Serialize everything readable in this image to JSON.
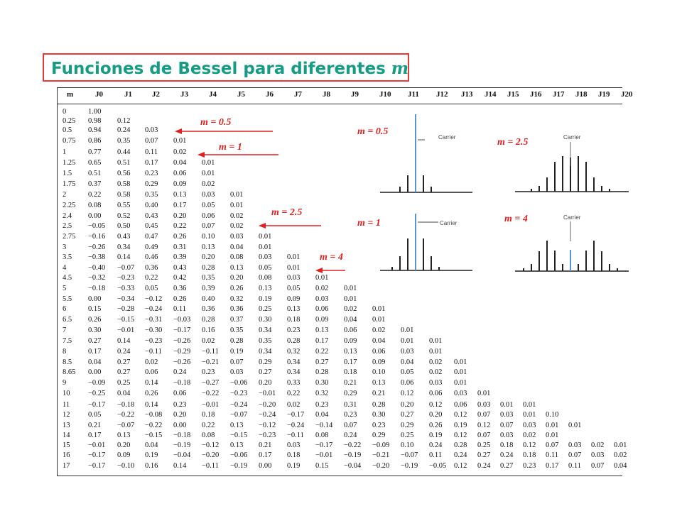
{
  "title": {
    "text": "Funciones de Bessel para diferentes ",
    "var": "m"
  },
  "table": {
    "headers": [
      "m",
      "J0",
      "J1",
      "J2",
      "J3",
      "J4",
      "J5",
      "J6",
      "J7",
      "J8",
      "J9",
      "J10",
      "J11",
      "J12",
      "J13",
      "J14",
      "J15",
      "J16",
      "J17",
      "J18",
      "J19",
      "J20"
    ],
    "rows": [
      [
        "0",
        "1.00"
      ],
      [
        "0.25",
        "0.98",
        "0.12"
      ],
      [
        "0.5",
        "0.94",
        "0.24",
        "0.03"
      ],
      [
        "0.75",
        "0.86",
        "0.35",
        "0.07",
        "0.01"
      ],
      [
        "1",
        "0.77",
        "0.44",
        "0.11",
        "0.02"
      ],
      [
        "1.25",
        "0.65",
        "0.51",
        "0.17",
        "0.04",
        "0.01"
      ],
      [
        "1.5",
        "0.51",
        "0.56",
        "0.23",
        "0.06",
        "0.01"
      ],
      [
        "1.75",
        "0.37",
        "0.58",
        "0.29",
        "0.09",
        "0.02"
      ],
      [
        "2",
        "0.22",
        "0.58",
        "0.35",
        "0.13",
        "0.03",
        "0.01"
      ],
      [
        "2.25",
        "0.08",
        "0.55",
        "0.40",
        "0.17",
        "0.05",
        "0.01"
      ],
      [
        "2.4",
        "0.00",
        "0.52",
        "0.43",
        "0.20",
        "0.06",
        "0.02"
      ],
      [
        "2.5",
        "−0.05",
        "0.50",
        "0.45",
        "0.22",
        "0.07",
        "0.02"
      ],
      [
        "2.75",
        "−0.16",
        "0.43",
        "0.47",
        "0.26",
        "0.10",
        "0.03",
        "0.01"
      ],
      [
        "3",
        "−0.26",
        "0.34",
        "0.49",
        "0.31",
        "0.13",
        "0.04",
        "0.01"
      ],
      [
        "3.5",
        "−0.38",
        "0.14",
        "0.46",
        "0.39",
        "0.20",
        "0.08",
        "0.03",
        "0.01"
      ],
      [
        "4",
        "−0.40",
        "−0.07",
        "0.36",
        "0.43",
        "0.28",
        "0.13",
        "0.05",
        "0.01"
      ],
      [
        "4.5",
        "−0.32",
        "−0.23",
        "0.22",
        "0.42",
        "0.35",
        "0.20",
        "0.08",
        "0.03",
        "0.01"
      ],
      [
        "5",
        "−0.18",
        "−0.33",
        "0.05",
        "0.36",
        "0.39",
        "0.26",
        "0.13",
        "0.05",
        "0.02",
        "0.01"
      ],
      [
        "5.5",
        "0.00",
        "−0.34",
        "−0.12",
        "0.26",
        "0.40",
        "0.32",
        "0.19",
        "0.09",
        "0.03",
        "0.01"
      ],
      [
        "6",
        "0.15",
        "−0.28",
        "−0.24",
        "0.11",
        "0.36",
        "0.36",
        "0.25",
        "0.13",
        "0.06",
        "0.02",
        "0.01"
      ],
      [
        "6.5",
        "0.26",
        "−0.15",
        "−0.31",
        "−0.03",
        "0.28",
        "0.37",
        "0.30",
        "0.18",
        "0.09",
        "0.04",
        "0.01"
      ],
      [
        "7",
        "0.30",
        "−0.01",
        "−0.30",
        "−0.17",
        "0.16",
        "0.35",
        "0.34",
        "0.23",
        "0.13",
        "0.06",
        "0.02",
        "0.01"
      ],
      [
        "7.5",
        "0.27",
        "0.14",
        "−0.23",
        "−0.26",
        "0.02",
        "0.28",
        "0.35",
        "0.28",
        "0.17",
        "0.09",
        "0.04",
        "0.01",
        "0.01"
      ],
      [
        "8",
        "0.17",
        "0.24",
        "−0.11",
        "−0.29",
        "−0.11",
        "0.19",
        "0.34",
        "0.32",
        "0.22",
        "0.13",
        "0.06",
        "0.03",
        "0.01"
      ],
      [
        "8.5",
        "0.04",
        "0.27",
        "0.02",
        "−0.26",
        "−0.21",
        "0.07",
        "0.29",
        "0.34",
        "0.27",
        "0.17",
        "0.09",
        "0.04",
        "0.02",
        "0.01"
      ],
      [
        "8.65",
        "0.00",
        "0.27",
        "0.06",
        "0.24",
        "0.23",
        "0.03",
        "0.27",
        "0.34",
        "0.28",
        "0.18",
        "0.10",
        "0.05",
        "0.02",
        "0.01"
      ],
      [
        "9",
        "−0.09",
        "0.25",
        "0.14",
        "−0.18",
        "−0.27",
        "−0.06",
        "0.20",
        "0.33",
        "0.30",
        "0.21",
        "0.13",
        "0.06",
        "0.03",
        "0.01"
      ],
      [
        "10",
        "−0.25",
        "0.04",
        "0.26",
        "0.06",
        "−0.22",
        "−0.23",
        "−0.01",
        "0.22",
        "0.32",
        "0.29",
        "0.21",
        "0.12",
        "0.06",
        "0.03",
        "0.01"
      ],
      [
        "11",
        "−0.17",
        "−0.18",
        "0.14",
        "0.23",
        "−0.01",
        "−0.24",
        "−0.20",
        "0.02",
        "0.23",
        "0.31",
        "0.28",
        "0.20",
        "0.12",
        "0.06",
        "0.03",
        "0.01",
        "0.01"
      ],
      [
        "12",
        "0.05",
        "−0.22",
        "−0.08",
        "0.20",
        "0.18",
        "−0.07",
        "−0.24",
        "−0.17",
        "0.04",
        "0.23",
        "0.30",
        "0.27",
        "0.20",
        "0.12",
        "0.07",
        "0.03",
        "0.01",
        "0.10"
      ],
      [
        "13",
        "0.21",
        "−0.07",
        "−0.22",
        "0.00",
        "0.22",
        "0.13",
        "−0.12",
        "−0.24",
        "−0.14",
        "0.07",
        "0.23",
        "0.29",
        "0.26",
        "0.19",
        "0.12",
        "0.07",
        "0.03",
        "0.01",
        "0.01"
      ],
      [
        "14",
        "0.17",
        "0.13",
        "−0.15",
        "−0.18",
        "0.08",
        "−0.15",
        "−0.23",
        "−0.11",
        "0.08",
        "0.24",
        "0.29",
        "0.25",
        "0.19",
        "0.12",
        "0.07",
        "0.03",
        "0.02",
        "0.01"
      ],
      [
        "15",
        "−0.01",
        "0.20",
        "0.04",
        "−0.19",
        "−0.12",
        "0.13",
        "0.21",
        "0.03",
        "−0.17",
        "−0.22",
        "−0.09",
        "0.10",
        "0.24",
        "0.28",
        "0.25",
        "0.18",
        "0.12",
        "0.07",
        "0.03",
        "0.02",
        "0.01"
      ],
      [
        "16",
        "−0.17",
        "0.09",
        "0.19",
        "−0.04",
        "−0.20",
        "−0.06",
        "0.17",
        "0.18",
        "−0.01",
        "−0.19",
        "−0.21",
        "−0.07",
        "0.11",
        "0.24",
        "0.27",
        "0.24",
        "0.18",
        "0.11",
        "0.07",
        "0.03",
        "0.02"
      ],
      [
        "17",
        "−0.17",
        "−0.10",
        "0.16",
        "0.14",
        "−0.11",
        "−0.19",
        "0.00",
        "0.19",
        "0.15",
        "−0.04",
        "−0.20",
        "−0.19",
        "−0.05",
        "0.12",
        "0.24",
        "0.27",
        "0.23",
        "0.17",
        "0.11",
        "0.07",
        "0.04"
      ]
    ]
  },
  "annotations": [
    {
      "label": "m = 0.5"
    },
    {
      "label": "m = 1"
    },
    {
      "label": "m = 2.5"
    },
    {
      "label": "m = 4"
    }
  ],
  "spectra": [
    {
      "label": "m = 0.5",
      "carrier_text": "Carrier"
    },
    {
      "label": "m = 1",
      "carrier_text": "Carrier"
    },
    {
      "label": "m = 2.5",
      "carrier_text": "Carrier"
    },
    {
      "label": "m = 4",
      "carrier_text": "Carrier"
    }
  ],
  "colors": {
    "title": "#169c85",
    "title_border": "#e33b3b",
    "annotation": "#e02020",
    "carrier": "#5b8fd6",
    "line": "#333333"
  }
}
